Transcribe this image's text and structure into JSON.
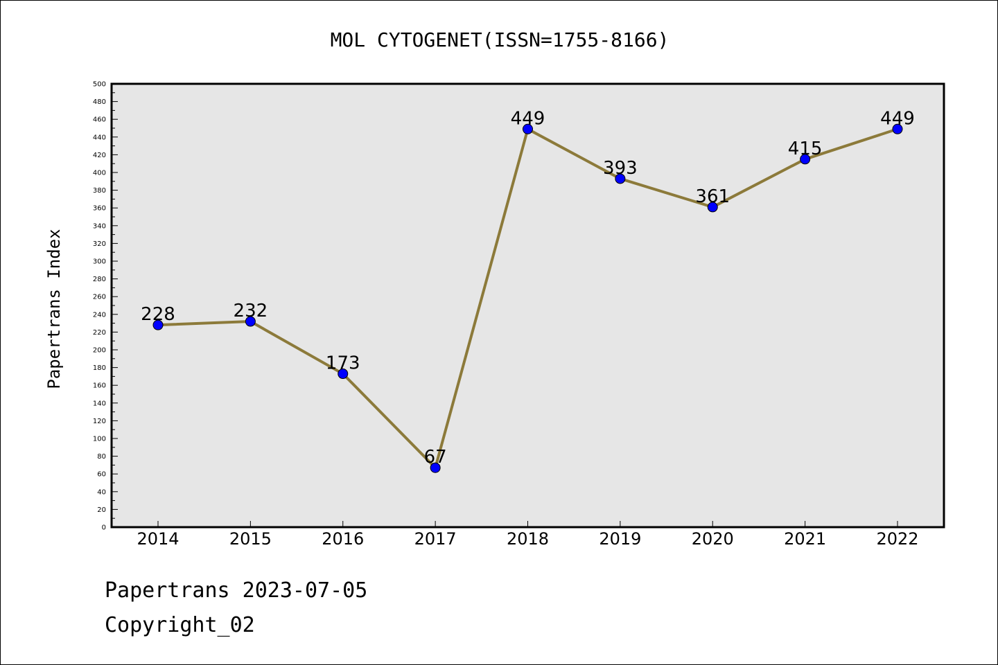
{
  "chart_data": {
    "type": "line",
    "title": "MOL CYTOGENET(ISSN=1755-8166)",
    "xlabel": "",
    "ylabel": "Papertrans Index",
    "categories": [
      "2014",
      "2015",
      "2016",
      "2017",
      "2018",
      "2019",
      "2020",
      "2021",
      "2022"
    ],
    "series": [
      {
        "values": [
          228,
          232,
          173,
          67,
          449,
          393,
          361,
          415,
          449
        ],
        "line_color": "#8c7a3a",
        "marker_color": "#0000ff"
      }
    ],
    "data_labels": [
      "228",
      "232",
      "173",
      "67",
      "449",
      "393",
      "361",
      "415",
      "449"
    ],
    "ylim": [
      0,
      500
    ],
    "ytick_step": 20,
    "ytick_labels": [
      "0",
      "20",
      "40",
      "60",
      "80",
      "100",
      "120",
      "140",
      "160",
      "180",
      "200",
      "220",
      "240",
      "260",
      "280",
      "300",
      "320",
      "340",
      "360",
      "380",
      "400",
      "420",
      "440",
      "460",
      "480",
      "500"
    ],
    "grid": false,
    "legend": "none",
    "plot_background": "#e6e6e6"
  },
  "footer": {
    "date_text": "Papertrans 2023-07-05",
    "copyright_text": "Copyright_02"
  }
}
